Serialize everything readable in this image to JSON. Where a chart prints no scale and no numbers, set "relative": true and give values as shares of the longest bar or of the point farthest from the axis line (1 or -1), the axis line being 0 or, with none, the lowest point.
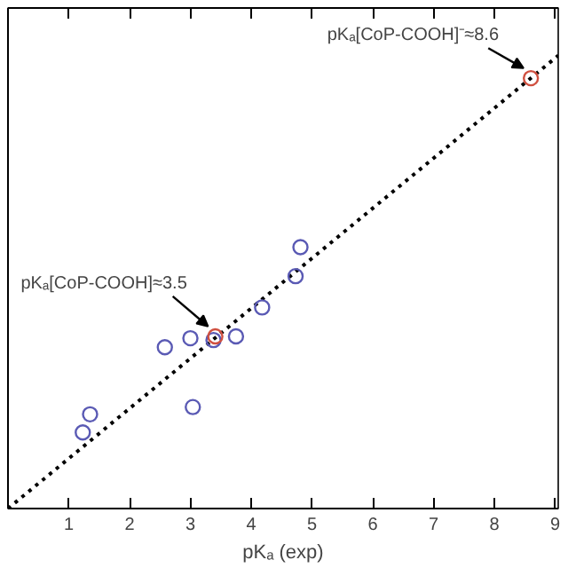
{
  "chart_data": {
    "type": "scatter",
    "xlabel": "pKₐ (exp)",
    "relative": true,
    "xlim": [
      0,
      9.05
    ],
    "xticks": [
      1,
      2,
      3,
      4,
      5,
      6,
      7,
      8,
      9
    ],
    "tick_labels": "x",
    "grid": false,
    "series": [
      {
        "type": "line",
        "color": "#000000",
        "line_style": "dotted",
        "marker": "none",
        "x": [
          0,
          9.05
        ],
        "values": [
          0,
          1
        ]
      },
      {
        "color": "#5a5ab4",
        "marker": "circle",
        "x": [
          4.81,
          4.73,
          4.18,
          3.0,
          3.38,
          3.75,
          2.58,
          3.04,
          1.35,
          1.23
        ],
        "values": [
          0.577,
          0.513,
          0.444,
          0.376,
          0.372,
          0.38,
          0.356,
          0.224,
          0.208,
          0.168
        ]
      },
      {
        "color": "#d05040",
        "marker": "circle",
        "x": [
          3.41,
          8.6
        ],
        "values": [
          0.38,
          0.95
        ]
      }
    ],
    "annotations": [
      {
        "text": "pKₐ[CoP-COOH]≈3.5",
        "x": 3.41,
        "y": 0.38
      },
      {
        "text": "pKₐ[CoP-COOH]⁻≈8.6",
        "x": 8.6,
        "y": 0.95
      }
    ]
  }
}
